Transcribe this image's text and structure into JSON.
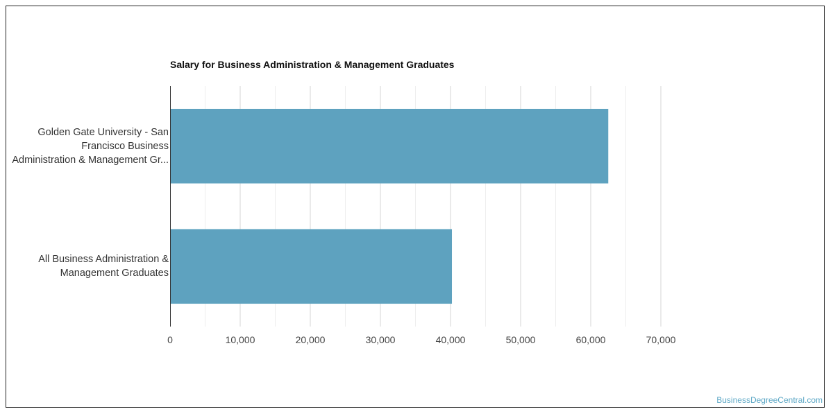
{
  "chart_data": {
    "type": "bar",
    "orientation": "horizontal",
    "title": "Salary for Business Administration & Management Graduates",
    "xlabel": "",
    "ylabel": "",
    "categories": [
      [
        "Golden Gate University - San",
        "Francisco Business",
        "Administration & Management Gr..."
      ],
      [
        "All Business Administration &",
        "Management Graduates"
      ]
    ],
    "values": [
      62500,
      40200
    ],
    "xlim": [
      0,
      70000
    ],
    "xticks": [
      0,
      10000,
      20000,
      30000,
      40000,
      50000,
      60000,
      70000
    ],
    "xtick_labels": [
      "0",
      "10,000",
      "20,000",
      "30,000",
      "40,000",
      "50,000",
      "60,000",
      "70,000"
    ],
    "grid": true,
    "bar_color": "#5ea2bf"
  },
  "watermark": "BusinessDegreeCentral.com"
}
